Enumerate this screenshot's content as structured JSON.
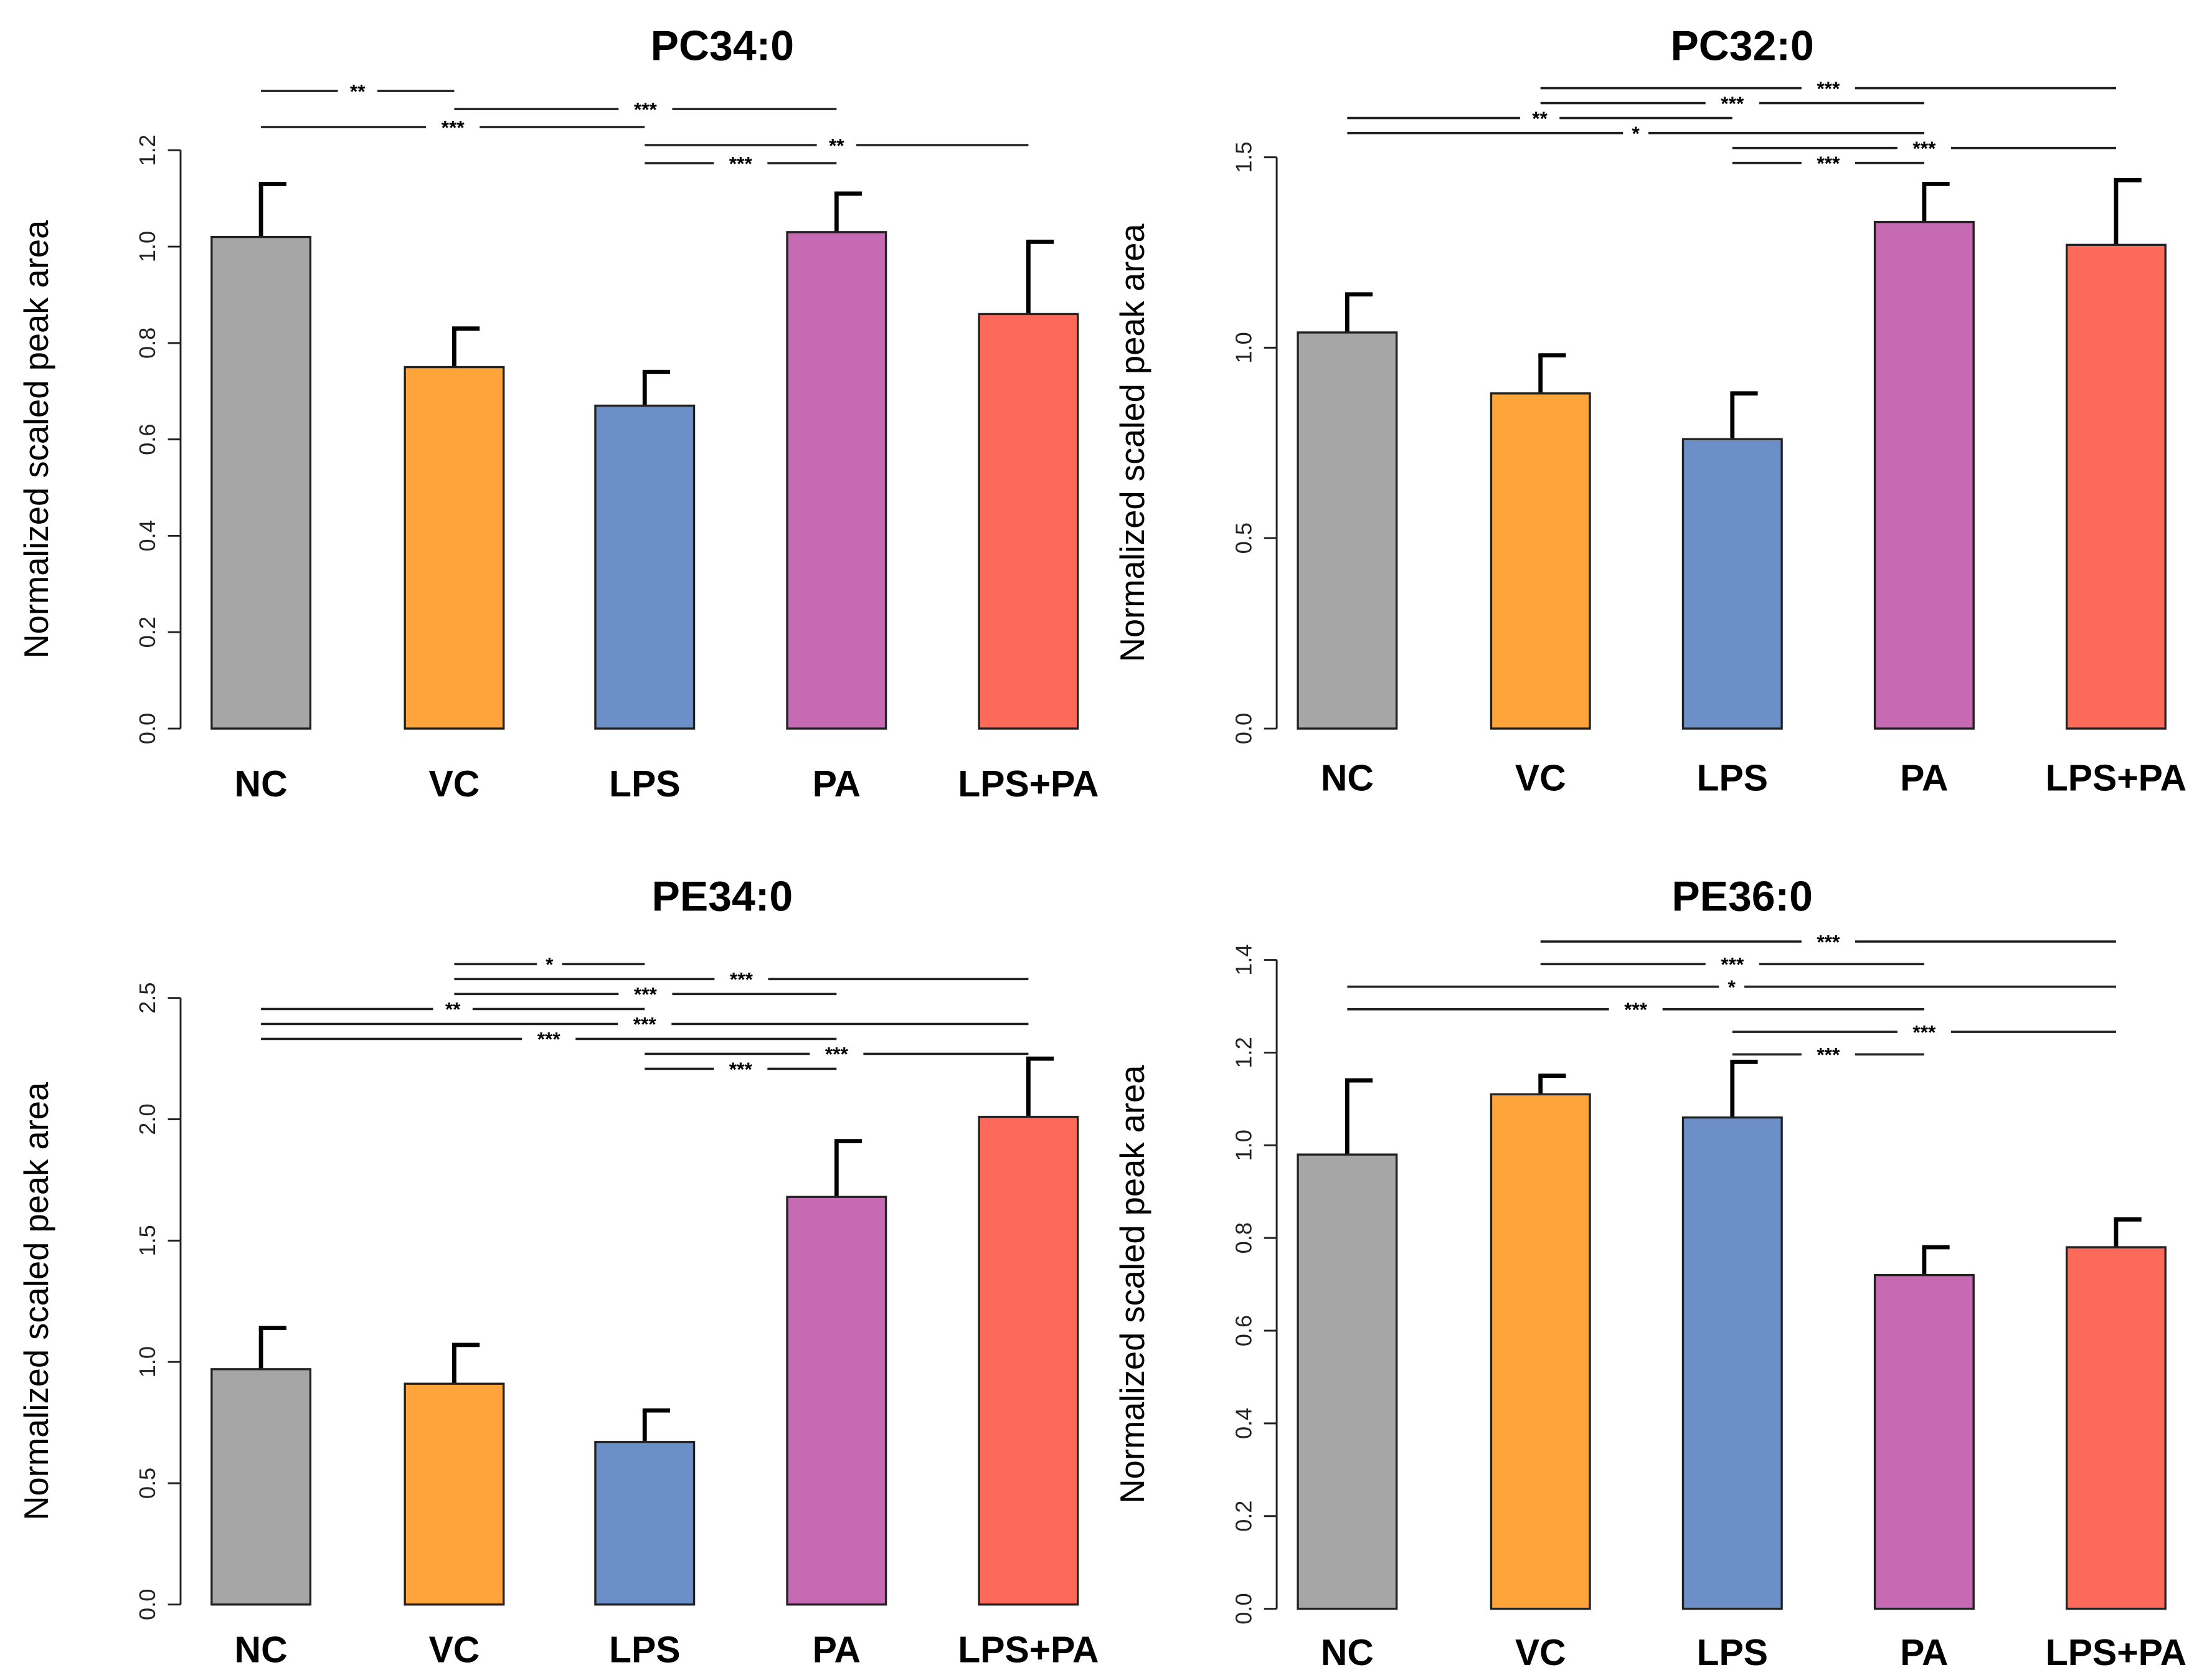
{
  "chart_data": [
    {
      "type": "bar",
      "title": "PC34:0",
      "ylabel": "Normalized scaled peak area",
      "xlabel": "",
      "categories": [
        "NC",
        "VC",
        "LPS",
        "PA",
        "LPS+PA"
      ],
      "values": [
        1.02,
        0.75,
        0.67,
        1.03,
        0.86
      ],
      "error_upper": [
        1.13,
        0.83,
        0.74,
        1.11,
        1.01
      ],
      "ylim": [
        0,
        1.2
      ],
      "yticks": [
        "0.0",
        "0.2",
        "0.4",
        "0.6",
        "0.8",
        "1.0",
        "1.2"
      ],
      "significance": [
        {
          "from": "NC",
          "to": "VC",
          "label": "**"
        },
        {
          "from": "VC",
          "to": "PA",
          "label": "***"
        },
        {
          "from": "NC",
          "to": "LPS",
          "label": "***"
        },
        {
          "from": "LPS",
          "to": "LPS+PA",
          "label": "**"
        },
        {
          "from": "LPS",
          "to": "PA",
          "label": "***"
        }
      ]
    },
    {
      "type": "bar",
      "title": "PC32:0",
      "ylabel": "Normalized scaled peak area",
      "xlabel": "",
      "categories": [
        "NC",
        "VC",
        "LPS",
        "PA",
        "LPS+PA"
      ],
      "values": [
        1.04,
        0.88,
        0.76,
        1.33,
        1.27
      ],
      "error_upper": [
        1.14,
        0.98,
        0.88,
        1.43,
        1.44
      ],
      "ylim": [
        0,
        1.5
      ],
      "yticks": [
        "0.0",
        "0.5",
        "1.0",
        "1.5"
      ],
      "significance": [
        {
          "from": "VC",
          "to": "LPS+PA",
          "label": "***"
        },
        {
          "from": "VC",
          "to": "PA",
          "label": "***"
        },
        {
          "from": "NC",
          "to": "LPS",
          "label": "**"
        },
        {
          "from": "NC",
          "to": "PA",
          "label": "*"
        },
        {
          "from": "LPS",
          "to": "LPS+PA",
          "label": "***"
        },
        {
          "from": "LPS",
          "to": "PA",
          "label": "***"
        }
      ]
    },
    {
      "type": "bar",
      "title": "PE34:0",
      "ylabel": "Normalized scaled peak area",
      "xlabel": "",
      "categories": [
        "NC",
        "VC",
        "LPS",
        "PA",
        "LPS+PA"
      ],
      "values": [
        0.97,
        0.91,
        0.67,
        1.68,
        2.01
      ],
      "error_upper": [
        1.14,
        1.07,
        0.8,
        1.91,
        2.25
      ],
      "ylim": [
        0,
        2.5
      ],
      "yticks": [
        "0.0",
        "0.5",
        "1.0",
        "1.5",
        "2.0",
        "2.5"
      ],
      "significance": [
        {
          "from": "VC",
          "to": "LPS",
          "label": "*"
        },
        {
          "from": "VC",
          "to": "LPS+PA",
          "label": "***"
        },
        {
          "from": "VC",
          "to": "PA",
          "label": "***"
        },
        {
          "from": "NC",
          "to": "LPS",
          "label": "**"
        },
        {
          "from": "NC",
          "to": "LPS+PA",
          "label": "***"
        },
        {
          "from": "NC",
          "to": "PA",
          "label": "***"
        },
        {
          "from": "LPS",
          "to": "LPS+PA",
          "label": "***"
        },
        {
          "from": "LPS",
          "to": "PA",
          "label": "***"
        }
      ]
    },
    {
      "type": "bar",
      "title": "PE36:0",
      "ylabel": "Normalized scaled peak area",
      "xlabel": "",
      "categories": [
        "NC",
        "VC",
        "LPS",
        "PA",
        "LPS+PA"
      ],
      "values": [
        0.98,
        1.11,
        1.06,
        0.72,
        0.78
      ],
      "error_upper": [
        1.14,
        1.15,
        1.18,
        0.78,
        0.84
      ],
      "ylim": [
        0,
        1.4
      ],
      "yticks": [
        "0.0",
        "0.2",
        "0.4",
        "0.6",
        "0.8",
        "1.0",
        "1.2",
        "1.4"
      ],
      "significance": [
        {
          "from": "VC",
          "to": "LPS+PA",
          "label": "***"
        },
        {
          "from": "VC",
          "to": "PA",
          "label": "***"
        },
        {
          "from": "NC",
          "to": "LPS+PA",
          "label": "*"
        },
        {
          "from": "NC",
          "to": "PA",
          "label": "***"
        },
        {
          "from": "LPS",
          "to": "LPS+PA",
          "label": "***"
        },
        {
          "from": "LPS",
          "to": "PA",
          "label": "***"
        }
      ]
    }
  ],
  "colors": {
    "NC": "#a6a6a6",
    "VC": "#fda43a",
    "LPS": "#6b8fc6",
    "PA": "#c66ab4",
    "LPS+PA": "#fd6a5a"
  }
}
